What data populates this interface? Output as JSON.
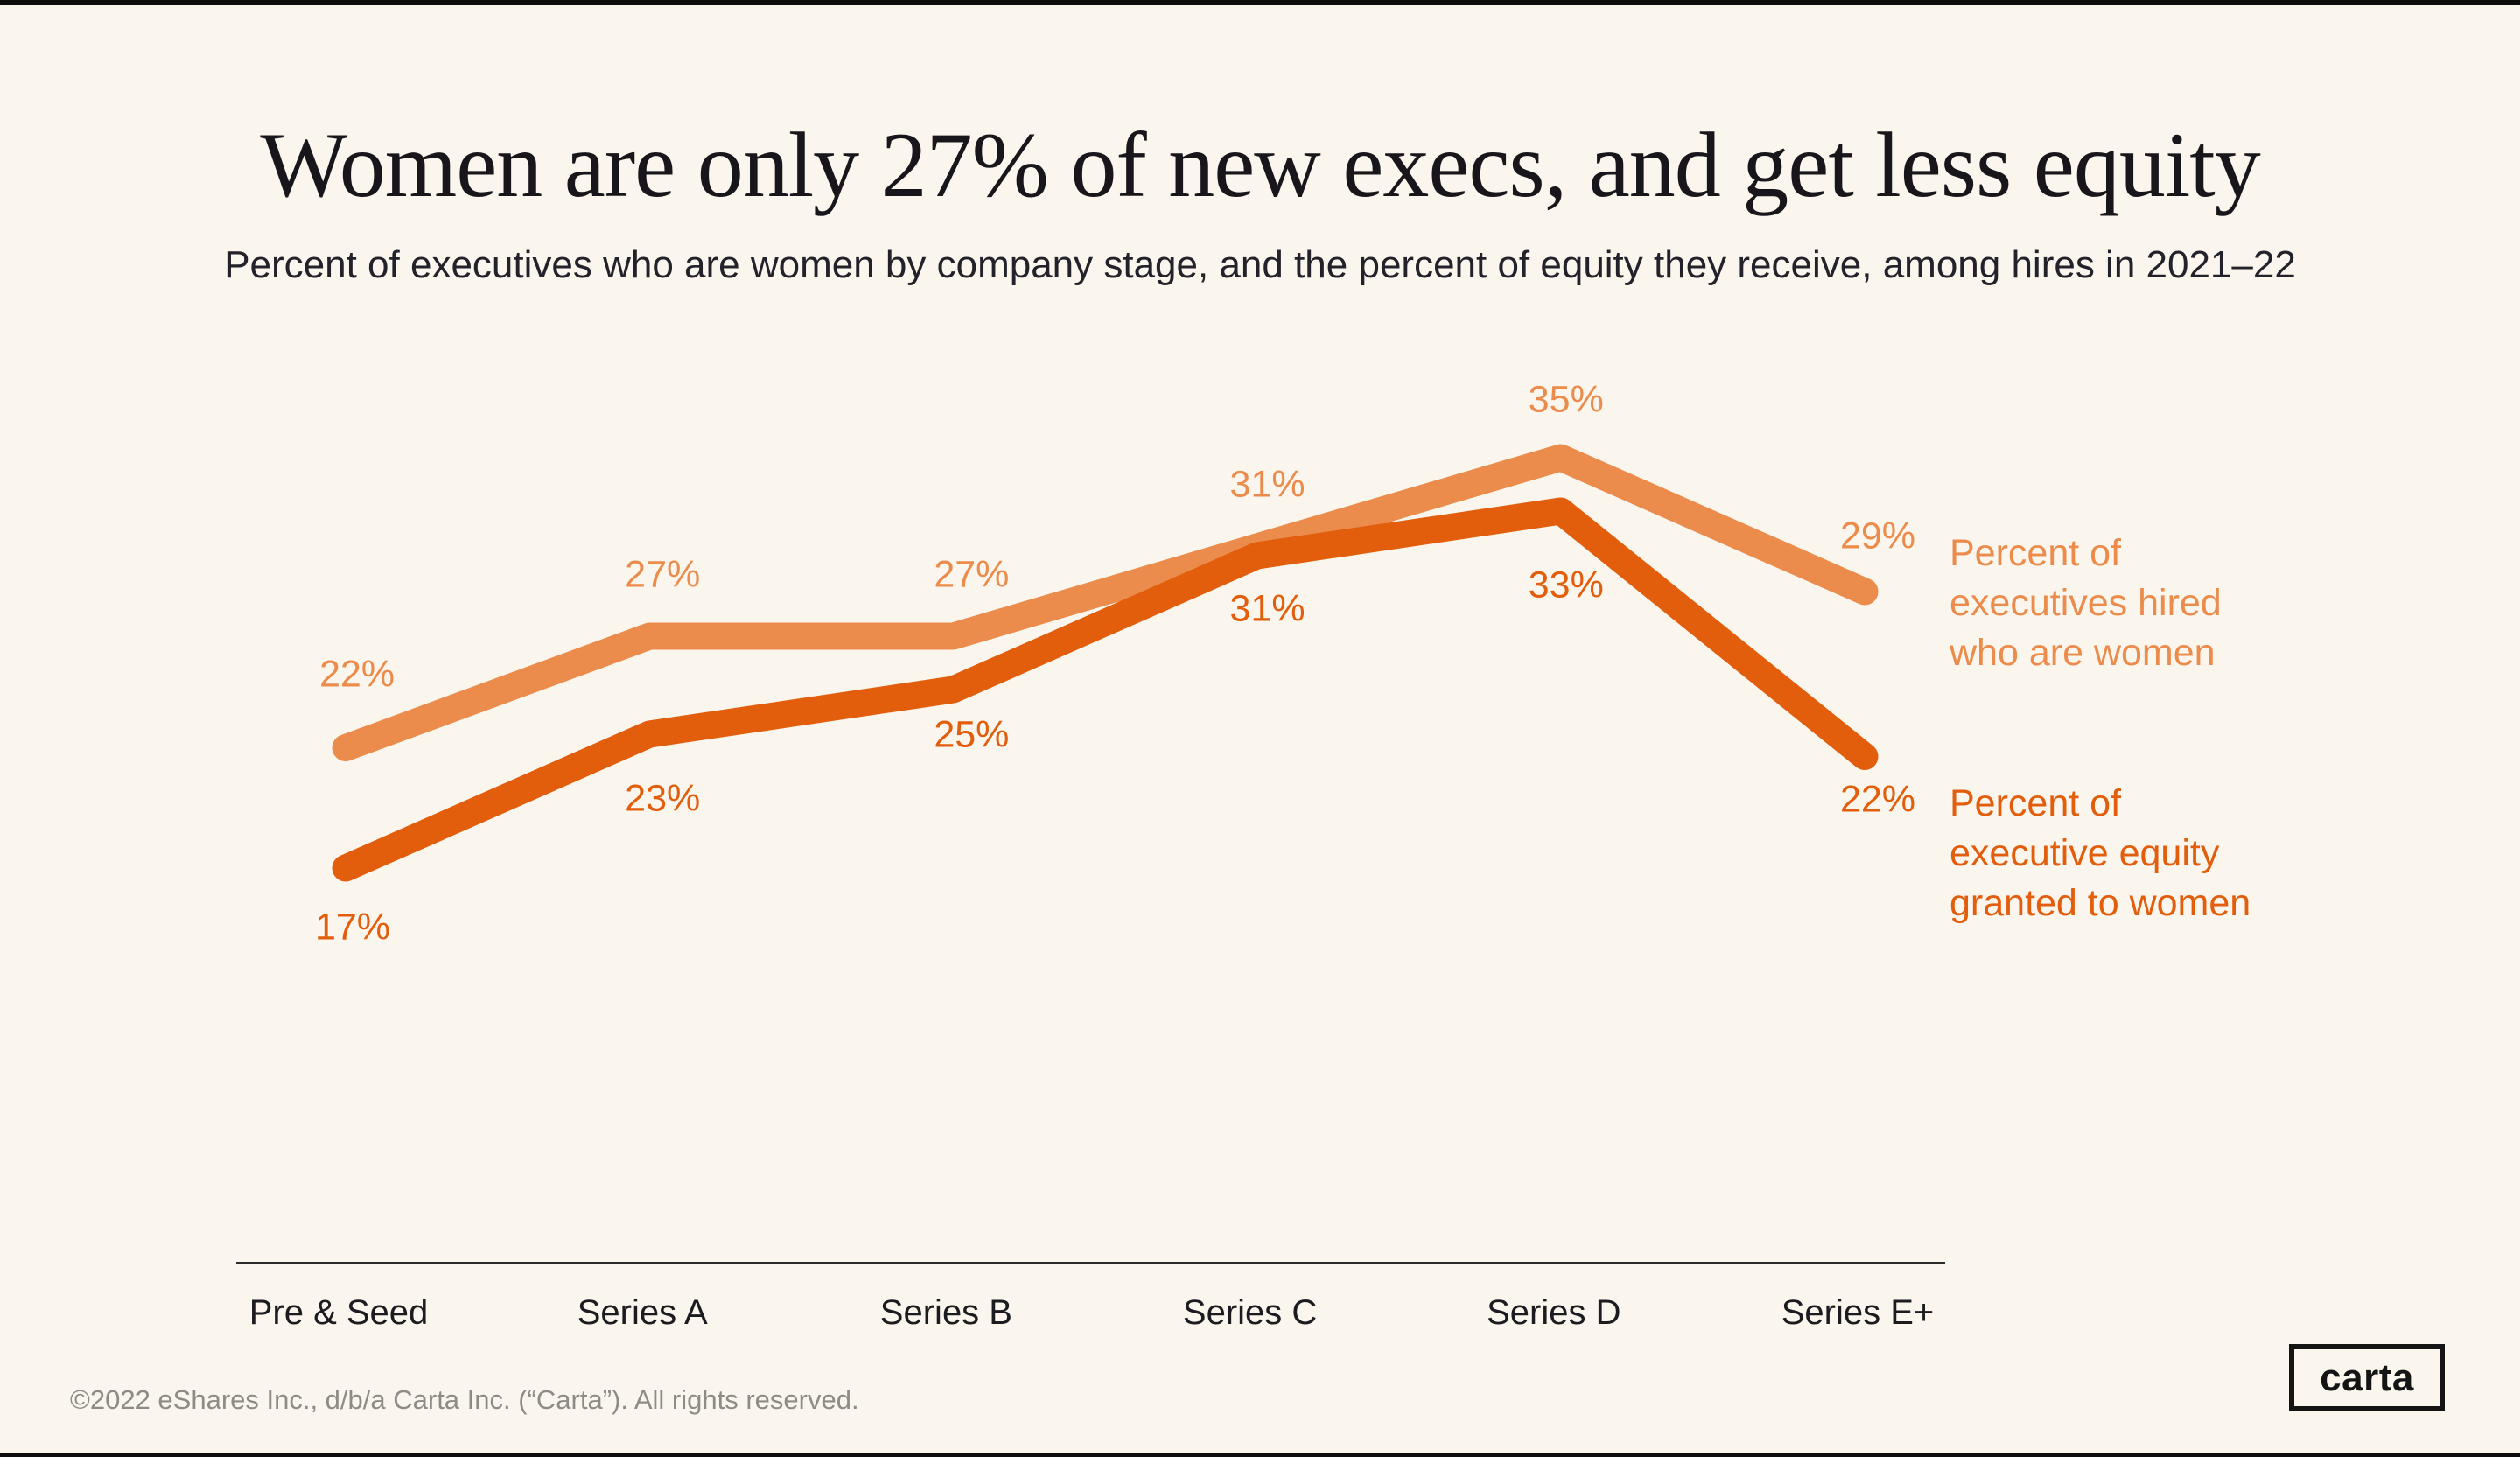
{
  "page": {
    "title": "Women are only 27% of new execs, and get less equity",
    "subtitle": "Percent of executives who are women by company stage, and the percent of equity they receive, among hires in 2021–22",
    "footer": "©2022 eShares Inc., d/b/a Carta Inc. (“Carta”). All rights reserved.",
    "logo_text": "carta"
  },
  "colors": {
    "background": "#FAF6EE",
    "hired_series": "#EC8C4C",
    "equity_series": "#E25E0C",
    "title_text": "#18161B",
    "axis_text": "#1B1B20",
    "axis_line": "#2B2B2B",
    "footer_text": "#8E8B86",
    "edge_bar": "#0D0D0D"
  },
  "chart_data": {
    "type": "line",
    "title": "Women are only 27% of new execs, and get less equity",
    "subtitle": "Percent of executives who are women by company stage, and the percent of equity they receive, among hires in 2021–22",
    "categories": [
      "Pre & Seed",
      "Series A",
      "Series B",
      "Series C",
      "Series D",
      "Series E+"
    ],
    "series": [
      {
        "name": "Percent of executives hired who are women",
        "values": [
          22,
          27,
          27,
          31,
          35,
          29
        ],
        "labels": [
          "22%",
          "27%",
          "27%",
          "31%",
          "35%",
          "29%"
        ],
        "color": "#EC8C4C"
      },
      {
        "name": "Percent of executive equity granted to women",
        "values": [
          17,
          23,
          25,
          31,
          33,
          22
        ],
        "labels": [
          "17%",
          "23%",
          "25%",
          "31%",
          "33%",
          "22%"
        ],
        "color": "#E25E0C"
      }
    ],
    "legend": [
      {
        "text": "Percent of\nexecutives hired\nwho are women"
      },
      {
        "text": "Percent of\nexecutive equity\ngranted to women"
      }
    ],
    "unit": "%",
    "grid": false,
    "legend_position": "right",
    "xlabel": "",
    "ylabel": "",
    "ylim": [
      15,
      37
    ]
  }
}
